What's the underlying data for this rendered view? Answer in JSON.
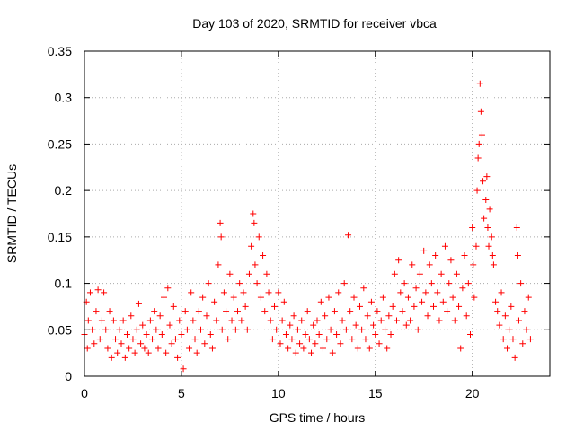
{
  "chart_data": {
    "type": "scatter",
    "title": "Day 103 of 2020, SRMTID for receiver vbca",
    "xlabel": "GPS time / hours",
    "ylabel": "SRMTID / TECUs",
    "xlim": [
      0,
      24
    ],
    "ylim": [
      0,
      0.35
    ],
    "xticks": [
      0,
      5,
      10,
      15,
      20
    ],
    "xtick_labels": [
      "0",
      "5",
      "10",
      "15",
      "20"
    ],
    "yticks": [
      0,
      0.05,
      0.1,
      0.15,
      0.2,
      0.25,
      0.3,
      0.35
    ],
    "ytick_labels": [
      "0",
      "0.05",
      "0.1",
      "0.15",
      "0.2",
      "0.25",
      "0.3",
      "0.35"
    ],
    "grid": true,
    "marker": "+",
    "series": [
      {
        "name": "SRMTID",
        "color": "#ff0000",
        "points": [
          [
            0.0,
            0.045
          ],
          [
            0.1,
            0.08
          ],
          [
            0.15,
            0.03
          ],
          [
            0.2,
            0.06
          ],
          [
            0.3,
            0.09
          ],
          [
            0.4,
            0.05
          ],
          [
            0.5,
            0.035
          ],
          [
            0.6,
            0.07
          ],
          [
            0.7,
            0.093
          ],
          [
            0.8,
            0.04
          ],
          [
            0.9,
            0.06
          ],
          [
            1.0,
            0.09
          ],
          [
            1.1,
            0.05
          ],
          [
            1.2,
            0.03
          ],
          [
            1.3,
            0.07
          ],
          [
            1.4,
            0.02
          ],
          [
            1.5,
            0.06
          ],
          [
            1.6,
            0.04
          ],
          [
            1.7,
            0.025
          ],
          [
            1.8,
            0.05
          ],
          [
            1.9,
            0.035
          ],
          [
            2.0,
            0.06
          ],
          [
            2.1,
            0.02
          ],
          [
            2.2,
            0.045
          ],
          [
            2.3,
            0.03
          ],
          [
            2.4,
            0.065
          ],
          [
            2.5,
            0.04
          ],
          [
            2.6,
            0.025
          ],
          [
            2.7,
            0.05
          ],
          [
            2.8,
            0.078
          ],
          [
            2.9,
            0.035
          ],
          [
            3.0,
            0.055
          ],
          [
            3.1,
            0.03
          ],
          [
            3.2,
            0.045
          ],
          [
            3.3,
            0.025
          ],
          [
            3.4,
            0.06
          ],
          [
            3.5,
            0.04
          ],
          [
            3.6,
            0.07
          ],
          [
            3.7,
            0.05
          ],
          [
            3.8,
            0.03
          ],
          [
            3.9,
            0.065
          ],
          [
            4.0,
            0.045
          ],
          [
            4.1,
            0.085
          ],
          [
            4.2,
            0.025
          ],
          [
            4.3,
            0.095
          ],
          [
            4.4,
            0.055
          ],
          [
            4.5,
            0.035
          ],
          [
            4.6,
            0.075
          ],
          [
            4.7,
            0.04
          ],
          [
            4.8,
            0.02
          ],
          [
            4.9,
            0.06
          ],
          [
            5.0,
            0.045
          ],
          [
            5.1,
            0.008
          ],
          [
            5.2,
            0.07
          ],
          [
            5.3,
            0.05
          ],
          [
            5.4,
            0.03
          ],
          [
            5.5,
            0.09
          ],
          [
            5.6,
            0.06
          ],
          [
            5.7,
            0.04
          ],
          [
            5.8,
            0.025
          ],
          [
            5.9,
            0.07
          ],
          [
            6.0,
            0.05
          ],
          [
            6.1,
            0.085
          ],
          [
            6.2,
            0.035
          ],
          [
            6.3,
            0.065
          ],
          [
            6.4,
            0.1
          ],
          [
            6.5,
            0.045
          ],
          [
            6.6,
            0.03
          ],
          [
            6.7,
            0.08
          ],
          [
            6.8,
            0.06
          ],
          [
            6.9,
            0.12
          ],
          [
            7.0,
            0.165
          ],
          [
            7.05,
            0.15
          ],
          [
            7.1,
            0.05
          ],
          [
            7.2,
            0.09
          ],
          [
            7.3,
            0.07
          ],
          [
            7.4,
            0.04
          ],
          [
            7.5,
            0.11
          ],
          [
            7.6,
            0.06
          ],
          [
            7.7,
            0.085
          ],
          [
            7.8,
            0.05
          ],
          [
            7.9,
            0.07
          ],
          [
            8.0,
            0.1
          ],
          [
            8.1,
            0.06
          ],
          [
            8.2,
            0.09
          ],
          [
            8.3,
            0.075
          ],
          [
            8.4,
            0.05
          ],
          [
            8.5,
            0.11
          ],
          [
            8.6,
            0.14
          ],
          [
            8.7,
            0.175
          ],
          [
            8.75,
            0.165
          ],
          [
            8.8,
            0.12
          ],
          [
            8.9,
            0.1
          ],
          [
            9.0,
            0.15
          ],
          [
            9.1,
            0.085
          ],
          [
            9.2,
            0.13
          ],
          [
            9.3,
            0.07
          ],
          [
            9.4,
            0.11
          ],
          [
            9.5,
            0.09
          ],
          [
            9.6,
            0.06
          ],
          [
            9.7,
            0.04
          ],
          [
            9.8,
            0.075
          ],
          [
            9.9,
            0.05
          ],
          [
            10.0,
            0.09
          ],
          [
            10.1,
            0.035
          ],
          [
            10.2,
            0.06
          ],
          [
            10.3,
            0.08
          ],
          [
            10.4,
            0.045
          ],
          [
            10.5,
            0.03
          ],
          [
            10.6,
            0.055
          ],
          [
            10.7,
            0.04
          ],
          [
            10.8,
            0.065
          ],
          [
            10.9,
            0.025
          ],
          [
            11.0,
            0.05
          ],
          [
            11.1,
            0.035
          ],
          [
            11.2,
            0.06
          ],
          [
            11.3,
            0.03
          ],
          [
            11.4,
            0.045
          ],
          [
            11.5,
            0.07
          ],
          [
            11.6,
            0.04
          ],
          [
            11.7,
            0.025
          ],
          [
            11.8,
            0.055
          ],
          [
            11.9,
            0.035
          ],
          [
            12.0,
            0.06
          ],
          [
            12.1,
            0.045
          ],
          [
            12.2,
            0.08
          ],
          [
            12.3,
            0.03
          ],
          [
            12.4,
            0.065
          ],
          [
            12.5,
            0.04
          ],
          [
            12.6,
            0.085
          ],
          [
            12.7,
            0.05
          ],
          [
            12.8,
            0.025
          ],
          [
            12.9,
            0.07
          ],
          [
            13.0,
            0.045
          ],
          [
            13.1,
            0.09
          ],
          [
            13.2,
            0.035
          ],
          [
            13.3,
            0.06
          ],
          [
            13.4,
            0.1
          ],
          [
            13.5,
            0.05
          ],
          [
            13.6,
            0.152
          ],
          [
            13.7,
            0.07
          ],
          [
            13.8,
            0.04
          ],
          [
            13.9,
            0.085
          ],
          [
            14.0,
            0.055
          ],
          [
            14.1,
            0.03
          ],
          [
            14.2,
            0.075
          ],
          [
            14.3,
            0.05
          ],
          [
            14.4,
            0.095
          ],
          [
            14.5,
            0.04
          ],
          [
            14.6,
            0.065
          ],
          [
            14.7,
            0.03
          ],
          [
            14.8,
            0.08
          ],
          [
            14.9,
            0.055
          ],
          [
            15.0,
            0.045
          ],
          [
            15.1,
            0.07
          ],
          [
            15.2,
            0.035
          ],
          [
            15.3,
            0.06
          ],
          [
            15.4,
            0.085
          ],
          [
            15.5,
            0.05
          ],
          [
            15.6,
            0.03
          ],
          [
            15.7,
            0.065
          ],
          [
            15.8,
            0.045
          ],
          [
            15.9,
            0.075
          ],
          [
            16.0,
            0.11
          ],
          [
            16.1,
            0.06
          ],
          [
            16.2,
            0.125
          ],
          [
            16.3,
            0.09
          ],
          [
            16.4,
            0.07
          ],
          [
            16.5,
            0.1
          ],
          [
            16.6,
            0.055
          ],
          [
            16.7,
            0.085
          ],
          [
            16.8,
            0.06
          ],
          [
            16.9,
            0.12
          ],
          [
            17.0,
            0.075
          ],
          [
            17.1,
            0.095
          ],
          [
            17.2,
            0.05
          ],
          [
            17.3,
            0.11
          ],
          [
            17.4,
            0.08
          ],
          [
            17.5,
            0.135
          ],
          [
            17.6,
            0.09
          ],
          [
            17.7,
            0.065
          ],
          [
            17.8,
            0.12
          ],
          [
            17.9,
            0.1
          ],
          [
            18.0,
            0.075
          ],
          [
            18.1,
            0.13
          ],
          [
            18.2,
            0.09
          ],
          [
            18.3,
            0.06
          ],
          [
            18.4,
            0.11
          ],
          [
            18.5,
            0.08
          ],
          [
            18.6,
            0.14
          ],
          [
            18.7,
            0.07
          ],
          [
            18.8,
            0.1
          ],
          [
            18.9,
            0.125
          ],
          [
            19.0,
            0.085
          ],
          [
            19.1,
            0.06
          ],
          [
            19.2,
            0.11
          ],
          [
            19.3,
            0.075
          ],
          [
            19.4,
            0.03
          ],
          [
            19.5,
            0.095
          ],
          [
            19.6,
            0.13
          ],
          [
            19.7,
            0.065
          ],
          [
            19.8,
            0.1
          ],
          [
            19.9,
            0.045
          ],
          [
            20.0,
            0.16
          ],
          [
            20.05,
            0.12
          ],
          [
            20.1,
            0.085
          ],
          [
            20.2,
            0.14
          ],
          [
            20.25,
            0.2
          ],
          [
            20.3,
            0.235
          ],
          [
            20.35,
            0.25
          ],
          [
            20.4,
            0.315
          ],
          [
            20.45,
            0.285
          ],
          [
            20.5,
            0.26
          ],
          [
            20.55,
            0.21
          ],
          [
            20.6,
            0.17
          ],
          [
            20.7,
            0.19
          ],
          [
            20.75,
            0.215
          ],
          [
            20.8,
            0.16
          ],
          [
            20.85,
            0.14
          ],
          [
            20.9,
            0.18
          ],
          [
            21.0,
            0.15
          ],
          [
            21.05,
            0.13
          ],
          [
            21.1,
            0.12
          ],
          [
            21.2,
            0.08
          ],
          [
            21.3,
            0.07
          ],
          [
            21.4,
            0.055
          ],
          [
            21.5,
            0.09
          ],
          [
            21.6,
            0.04
          ],
          [
            21.7,
            0.065
          ],
          [
            21.8,
            0.03
          ],
          [
            21.9,
            0.05
          ],
          [
            22.0,
            0.075
          ],
          [
            22.1,
            0.04
          ],
          [
            22.2,
            0.02
          ],
          [
            22.3,
            0.16
          ],
          [
            22.35,
            0.13
          ],
          [
            22.4,
            0.06
          ],
          [
            22.5,
            0.1
          ],
          [
            22.6,
            0.035
          ],
          [
            22.7,
            0.07
          ],
          [
            22.8,
            0.05
          ],
          [
            22.9,
            0.085
          ],
          [
            23.0,
            0.04
          ]
        ]
      }
    ]
  }
}
